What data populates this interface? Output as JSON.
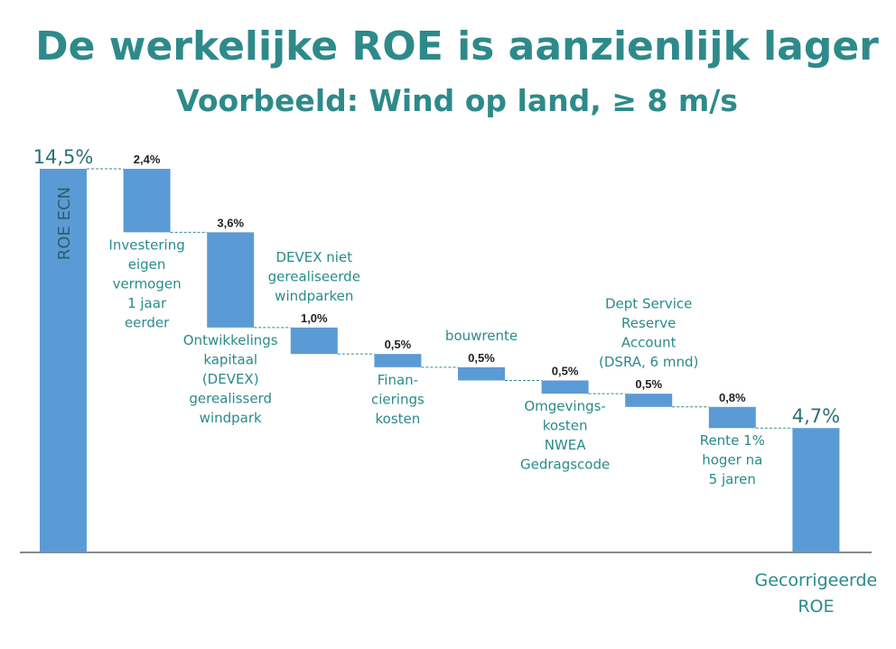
{
  "title": "De werkelijke ROE is aanzienlijk lager",
  "subtitle": "Voorbeeld: Wind op land, ≥ 8 m/s",
  "colors": {
    "bar": "#5b9bd5",
    "text": "#2e8a8a",
    "connector": "#2e8a8a"
  },
  "chart_data": {
    "type": "bar",
    "subtype": "waterfall",
    "ylim": [
      0,
      14.5
    ],
    "steps": [
      {
        "kind": "total",
        "value": 14.5,
        "value_label": "14,5%",
        "label": [
          "ROE ECN"
        ],
        "label_position": "inside"
      },
      {
        "kind": "decrease",
        "value": 2.4,
        "value_label": "2,4%",
        "label": [
          "Investering",
          "eigen",
          "vermogen",
          "1 jaar",
          "eerder"
        ],
        "label_position": "below"
      },
      {
        "kind": "decrease",
        "value": 3.6,
        "value_label": "3,6%",
        "label": [
          "Ontwikkelings",
          "kapitaal",
          "(DEVEX)",
          "gerealisserd",
          "windpark"
        ],
        "label_position": "below"
      },
      {
        "kind": "decrease",
        "value": 1.0,
        "value_label": "1,0%",
        "label": [
          "DEVEX niet",
          "gerealiseerde",
          "windparken"
        ],
        "label_position": "above"
      },
      {
        "kind": "decrease",
        "value": 0.5,
        "value_label": "0,5%",
        "label": [
          "Finan-",
          "cierings",
          "kosten"
        ],
        "label_position": "below"
      },
      {
        "kind": "decrease",
        "value": 0.5,
        "value_label": "0,5%",
        "label": [
          "bouwrente"
        ],
        "label_position": "above"
      },
      {
        "kind": "decrease",
        "value": 0.5,
        "value_label": "0,5%",
        "label": [
          "Omgevings-",
          "kosten",
          "NWEA",
          "Gedragscode"
        ],
        "label_position": "below"
      },
      {
        "kind": "decrease",
        "value": 0.5,
        "value_label": "0,5%",
        "label": [
          "Dept Service",
          "Reserve",
          "Account",
          "(DSRA, 6 mnd)"
        ],
        "label_position": "above"
      },
      {
        "kind": "decrease",
        "value": 0.8,
        "value_label": "0,8%",
        "label": [
          "Rente 1%",
          "hoger na",
          "5 jaren"
        ],
        "label_position": "below"
      },
      {
        "kind": "total",
        "value": 4.7,
        "value_label": "4,7%",
        "label": [
          "Gecorrigeerde",
          "ROE"
        ],
        "label_position": "below-axis"
      }
    ]
  }
}
